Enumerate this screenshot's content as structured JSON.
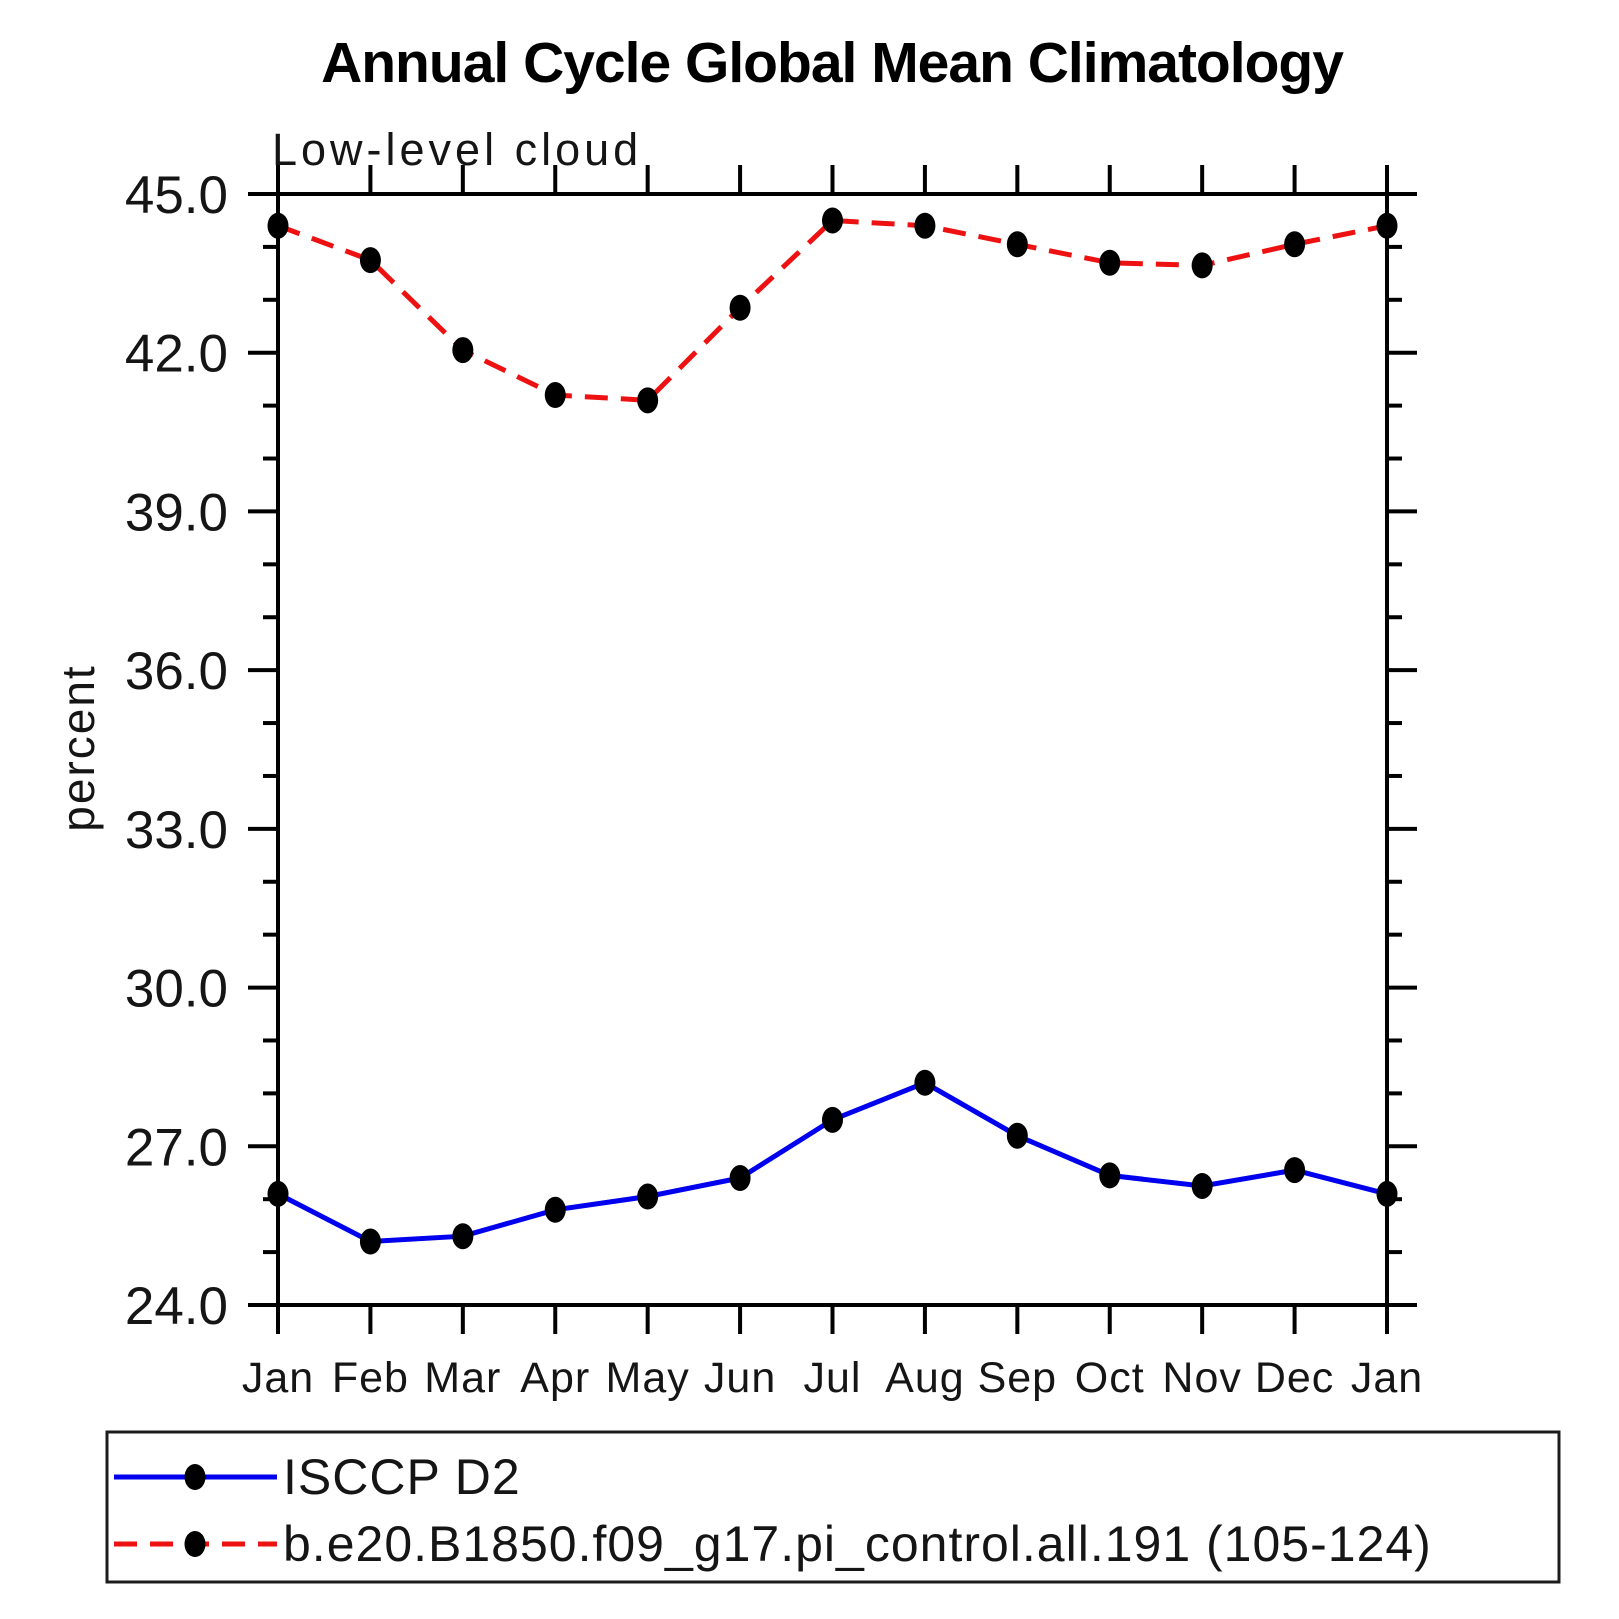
{
  "page": {
    "background_color": "#ffffff",
    "axis_color": "#000000"
  },
  "chart_data": {
    "type": "line",
    "title": "Annual Cycle Global Mean Climatology",
    "subtitle": "Low-level cloud",
    "ylabel": "percent",
    "xlabel": "",
    "categories": [
      "Jan",
      "Feb",
      "Mar",
      "Apr",
      "May",
      "Jun",
      "Jul",
      "Aug",
      "Sep",
      "Oct",
      "Nov",
      "Dec",
      "Jan"
    ],
    "ylim": [
      24.0,
      45.0
    ],
    "ytick_major_step": 3.0,
    "ytick_minor_step": 1.0,
    "ytick_major_labels": [
      "24.0",
      "27.0",
      "30.0",
      "33.0",
      "36.0",
      "39.0",
      "42.0",
      "45.0"
    ],
    "grid": "off",
    "legend_position": "bottom",
    "marker": "filled-circle",
    "marker_color": "#000000",
    "series": [
      {
        "name": "ISCCP D2",
        "color": "#0000ee",
        "line_style": "solid",
        "values": [
          26.1,
          25.2,
          25.3,
          25.8,
          26.05,
          26.4,
          27.5,
          28.2,
          27.2,
          26.45,
          26.25,
          26.55,
          26.1
        ]
      },
      {
        "name": "b.e20.B1850.f09_g17.pi_control.all.191 (105-124)",
        "color": "#ee1111",
        "line_style": "dashed",
        "values": [
          44.4,
          43.75,
          42.05,
          41.2,
          41.1,
          42.85,
          44.5,
          44.4,
          44.05,
          43.7,
          43.65,
          44.05,
          44.4
        ]
      }
    ]
  }
}
